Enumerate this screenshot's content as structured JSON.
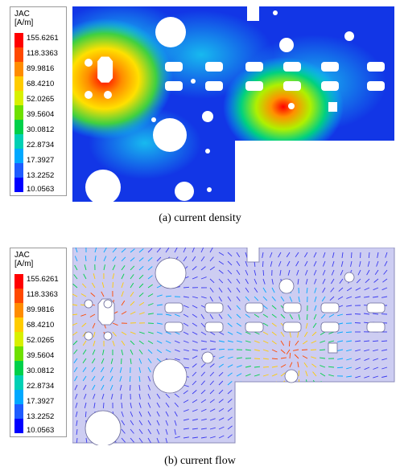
{
  "legend": {
    "title_line1": "JAC",
    "title_line2": "[A/m]",
    "ticks": [
      "155.6261",
      "118.3363",
      "89.9816",
      "68.4210",
      "52.0265",
      "39.5604",
      "30.0812",
      "22.8734",
      "17.3927",
      "13.2252",
      "10.0563"
    ],
    "colors": [
      "#ff0000",
      "#ff4800",
      "#ff8c00",
      "#ffcc00",
      "#d8f000",
      "#6ee000",
      "#00d04a",
      "#00d0b4",
      "#00a8ff",
      "#1e5cff",
      "#0000ff"
    ]
  },
  "panels": [
    {
      "caption": "(a)  current density"
    },
    {
      "caption": "(b)  current flow"
    }
  ],
  "colors": {
    "board_dark_blue": "#1030e0",
    "board_light": "#c8c8f0",
    "arrow_blue": "#3a3af0",
    "hole": "#ffffff"
  }
}
